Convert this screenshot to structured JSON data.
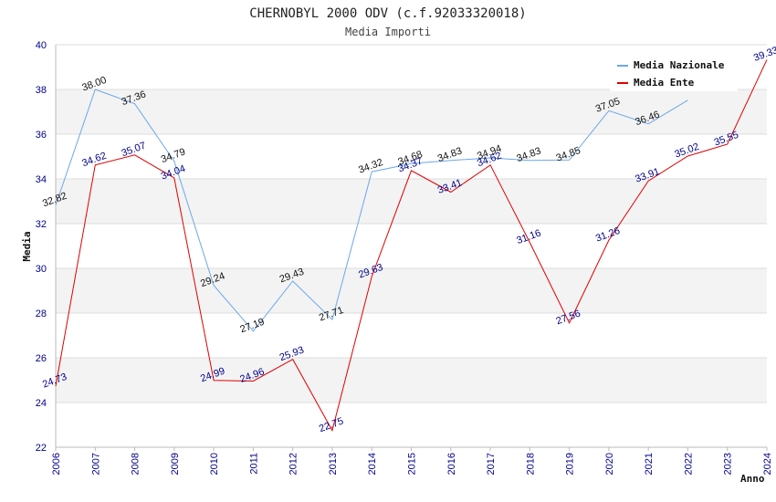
{
  "chart_data": {
    "type": "line",
    "title": "CHERNOBYL 2000 ODV (c.f.92033320018)",
    "subtitle": "Media Importi",
    "xlabel": "Anno",
    "ylabel": "Media",
    "ylim": [
      22,
      40
    ],
    "yticks": [
      "22",
      "24",
      "26",
      "28",
      "30",
      "32",
      "34",
      "36",
      "38",
      "40"
    ],
    "x": [
      "2006",
      "2007",
      "2008",
      "2009",
      "2010",
      "2011",
      "2012",
      "2013",
      "2014",
      "2015",
      "2016",
      "2017",
      "2018",
      "2019",
      "2020",
      "2021",
      "2022",
      "2023",
      "2024"
    ],
    "grid": true,
    "legend_position": "top-right",
    "series": [
      {
        "name": "Media Nazionale",
        "color": "#6aa8e8",
        "values": [
          32.82,
          38.0,
          37.36,
          34.79,
          29.24,
          27.19,
          29.43,
          27.71,
          34.32,
          34.68,
          34.83,
          34.94,
          34.83,
          34.85,
          37.05,
          36.46,
          37.52,
          null,
          null
        ],
        "labels": [
          "32.82",
          "38.00",
          "37.36",
          "34.79",
          "29.24",
          "27.19",
          "29.43",
          "27.71",
          "34.32",
          "34.68",
          "34.83",
          "34.94",
          "34.83",
          "34.85",
          "37.05",
          "36.46",
          "",
          "",
          ""
        ]
      },
      {
        "name": "Media Ente",
        "color": "#e00000",
        "values": [
          24.73,
          34.62,
          35.07,
          34.04,
          24.99,
          24.96,
          25.93,
          22.75,
          29.63,
          34.37,
          33.41,
          34.62,
          31.16,
          27.56,
          31.26,
          33.91,
          35.02,
          35.55,
          39.33
        ],
        "labels": [
          "24.73",
          "34.62",
          "35.07",
          "34.04",
          "24.99",
          "24.96",
          "25.93",
          "22.75",
          "29.63",
          "34.37",
          "33.41",
          "34.62",
          "31.16",
          "27.56",
          "31.26",
          "33.91",
          "35.02",
          "35.55",
          "39.33"
        ]
      }
    ]
  }
}
